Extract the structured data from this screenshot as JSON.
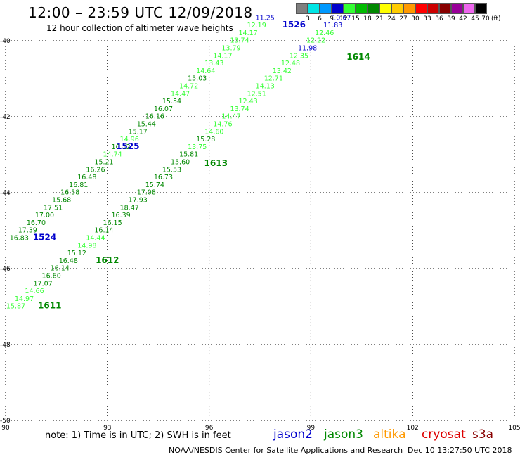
{
  "header": {
    "title": "12:00 – 23:59 UTC 12/09/2018",
    "subtitle": "12 hour collection of altimeter wave heights"
  },
  "color_scale": {
    "labels": [
      "3",
      "6",
      "9",
      "12",
      "15",
      "18",
      "21",
      "24",
      "27",
      "30",
      "33",
      "36",
      "39",
      "42",
      "45",
      "70"
    ],
    "colors": [
      "#7f7f7f",
      "#00e5e5",
      "#0099ff",
      "#0000cc",
      "#33ff33",
      "#00bb00",
      "#008800",
      "#ffff00",
      "#ffcc00",
      "#ff9900",
      "#ff0000",
      "#cc0000",
      "#880000",
      "#990099",
      "#ee66ee",
      "#000000"
    ],
    "unit": "(ft)"
  },
  "axes": {
    "x_ticks": [
      "90",
      "93",
      "96",
      "99",
      "102",
      "105"
    ],
    "y_ticks": [
      "-40",
      "-42",
      "-44",
      "-46",
      "-48",
      "-50"
    ],
    "x_range": [
      90,
      105
    ],
    "y_range": [
      -50,
      -40
    ]
  },
  "passes": [
    {
      "id": "1611",
      "label_lon": 91.3,
      "label_lat": -47.05,
      "color": "#008800",
      "points": [
        {
          "lon": 90.3,
          "lat": -47.05,
          "v": "15.87",
          "c": "#33ff33"
        },
        {
          "lon": 90.55,
          "lat": -46.85,
          "v": "14.97",
          "c": "#33ff33"
        },
        {
          "lon": 90.85,
          "lat": -46.65,
          "v": "14.66",
          "c": "#33ff33"
        },
        {
          "lon": 91.1,
          "lat": -46.45,
          "v": "17.07",
          "c": "#008800"
        },
        {
          "lon": 91.35,
          "lat": -46.25,
          "v": "16.60",
          "c": "#008800"
        },
        {
          "lon": 91.6,
          "lat": -46.05,
          "v": "16.14",
          "c": "#008800"
        },
        {
          "lon": 91.85,
          "lat": -45.85,
          "v": "16.48",
          "c": "#008800"
        },
        {
          "lon": 92.1,
          "lat": -45.65,
          "v": "15.12",
          "c": "#008800"
        }
      ]
    },
    {
      "id": "1612",
      "label_lon": 93.0,
      "label_lat": -45.85,
      "color": "#008800",
      "points": [
        {
          "lon": 92.4,
          "lat": -45.45,
          "v": "14.98",
          "c": "#33ff33"
        },
        {
          "lon": 92.65,
          "lat": -45.25,
          "v": "14.44",
          "c": "#33ff33"
        },
        {
          "lon": 92.9,
          "lat": -45.05,
          "v": "16.14",
          "c": "#008800"
        },
        {
          "lon": 93.15,
          "lat": -44.85,
          "v": "16.15",
          "c": "#008800"
        },
        {
          "lon": 93.4,
          "lat": -44.65,
          "v": "16.39",
          "c": "#008800"
        },
        {
          "lon": 93.65,
          "lat": -44.45,
          "v": "18.47",
          "c": "#008800"
        },
        {
          "lon": 93.9,
          "lat": -44.25,
          "v": "17.93",
          "c": "#008800"
        },
        {
          "lon": 94.15,
          "lat": -44.05,
          "v": "17.08",
          "c": "#008800"
        }
      ]
    },
    {
      "id": "1613",
      "label_lon": 96.2,
      "label_lat": -43.3,
      "color": "#008800",
      "points": [
        {
          "lon": 94.4,
          "lat": -43.85,
          "v": "15.74",
          "c": "#008800"
        },
        {
          "lon": 94.65,
          "lat": -43.65,
          "v": "16.73",
          "c": "#008800"
        },
        {
          "lon": 94.9,
          "lat": -43.45,
          "v": "15.53",
          "c": "#008800"
        },
        {
          "lon": 95.15,
          "lat": -43.25,
          "v": "15.60",
          "c": "#008800"
        },
        {
          "lon": 95.4,
          "lat": -43.05,
          "v": "15.81",
          "c": "#008800"
        },
        {
          "lon": 95.65,
          "lat": -42.85,
          "v": "13.75",
          "c": "#33ff33"
        },
        {
          "lon": 95.9,
          "lat": -42.65,
          "v": "15.28",
          "c": "#008800"
        },
        {
          "lon": 96.15,
          "lat": -42.45,
          "v": "14.60",
          "c": "#33ff33"
        },
        {
          "lon": 96.4,
          "lat": -42.25,
          "v": "14.76",
          "c": "#33ff33"
        },
        {
          "lon": 96.65,
          "lat": -42.05,
          "v": "14.47",
          "c": "#33ff33"
        },
        {
          "lon": 96.9,
          "lat": -41.85,
          "v": "13.74",
          "c": "#33ff33"
        },
        {
          "lon": 97.15,
          "lat": -41.65,
          "v": "12.43",
          "c": "#33ff33"
        },
        {
          "lon": 97.4,
          "lat": -41.45,
          "v": "12.51",
          "c": "#33ff33"
        },
        {
          "lon": 97.65,
          "lat": -41.25,
          "v": "14.13",
          "c": "#33ff33"
        },
        {
          "lon": 97.9,
          "lat": -41.05,
          "v": "12.71",
          "c": "#33ff33"
        },
        {
          "lon": 98.15,
          "lat": -40.85,
          "v": "13.42",
          "c": "#33ff33"
        },
        {
          "lon": 98.4,
          "lat": -40.65,
          "v": "12.48",
          "c": "#33ff33"
        },
        {
          "lon": 98.65,
          "lat": -40.45,
          "v": "12.35",
          "c": "#33ff33"
        }
      ]
    },
    {
      "id": "1614",
      "label_lon": 100.4,
      "label_lat": -40.5,
      "color": "#008800",
      "points": [
        {
          "lon": 98.9,
          "lat": -40.25,
          "v": "11.98",
          "c": "#0000cc"
        },
        {
          "lon": 99.15,
          "lat": -40.05,
          "v": "12.22",
          "c": "#33ff33"
        },
        {
          "lon": 99.4,
          "lat": -39.85,
          "v": "12.46",
          "c": "#33ff33"
        },
        {
          "lon": 99.65,
          "lat": -39.65,
          "v": "11.83",
          "c": "#0000cc"
        },
        {
          "lon": 99.9,
          "lat": -39.45,
          "v": "10.67",
          "c": "#0000cc"
        }
      ]
    },
    {
      "id": "1524",
      "label_lon": 91.15,
      "label_lat": -45.25,
      "color": "#0000cc",
      "points": [
        {
          "lon": 90.4,
          "lat": -45.25,
          "v": "16.83",
          "c": "#008800"
        },
        {
          "lon": 90.65,
          "lat": -45.05,
          "v": "17.39",
          "c": "#008800"
        },
        {
          "lon": 90.9,
          "lat": -44.85,
          "v": "16.70",
          "c": "#008800"
        },
        {
          "lon": 91.15,
          "lat": -44.65,
          "v": "17.00",
          "c": "#008800"
        },
        {
          "lon": 91.4,
          "lat": -44.45,
          "v": "17.51",
          "c": "#008800"
        },
        {
          "lon": 91.65,
          "lat": -44.25,
          "v": "15.68",
          "c": "#008800"
        },
        {
          "lon": 91.9,
          "lat": -44.05,
          "v": "16.58",
          "c": "#008800"
        },
        {
          "lon": 92.15,
          "lat": -43.85,
          "v": "16.81",
          "c": "#008800"
        },
        {
          "lon": 92.4,
          "lat": -43.65,
          "v": "16.48",
          "c": "#008800"
        },
        {
          "lon": 92.65,
          "lat": -43.45,
          "v": "16.26",
          "c": "#008800"
        },
        {
          "lon": 92.9,
          "lat": -43.25,
          "v": "15.21",
          "c": "#008800"
        },
        {
          "lon": 93.15,
          "lat": -43.05,
          "v": "14.74",
          "c": "#33ff33"
        },
        {
          "lon": 93.4,
          "lat": -42.85,
          "v": "16.12",
          "c": "#008800"
        }
      ]
    },
    {
      "id": "1525",
      "label_lon": 93.6,
      "label_lat": -42.85,
      "color": "#0000cc",
      "points": [
        {
          "lon": 93.65,
          "lat": -42.65,
          "v": "14.96",
          "c": "#33ff33"
        },
        {
          "lon": 93.9,
          "lat": -42.45,
          "v": "15.17",
          "c": "#008800"
        },
        {
          "lon": 94.15,
          "lat": -42.25,
          "v": "15.44",
          "c": "#008800"
        },
        {
          "lon": 94.4,
          "lat": -42.05,
          "v": "16.16",
          "c": "#008800"
        },
        {
          "lon": 94.65,
          "lat": -41.85,
          "v": "16.07",
          "c": "#008800"
        },
        {
          "lon": 94.9,
          "lat": -41.65,
          "v": "15.54",
          "c": "#008800"
        },
        {
          "lon": 95.15,
          "lat": -41.45,
          "v": "14.47",
          "c": "#33ff33"
        },
        {
          "lon": 95.4,
          "lat": -41.25,
          "v": "14.72",
          "c": "#33ff33"
        },
        {
          "lon": 95.65,
          "lat": -41.05,
          "v": "15.03",
          "c": "#008800"
        },
        {
          "lon": 95.9,
          "lat": -40.85,
          "v": "14.64",
          "c": "#33ff33"
        },
        {
          "lon": 96.15,
          "lat": -40.65,
          "v": "13.43",
          "c": "#33ff33"
        },
        {
          "lon": 96.4,
          "lat": -40.45,
          "v": "14.17",
          "c": "#33ff33"
        },
        {
          "lon": 96.65,
          "lat": -40.25,
          "v": "13.79",
          "c": "#33ff33"
        },
        {
          "lon": 96.9,
          "lat": -40.05,
          "v": "13.74",
          "c": "#33ff33"
        },
        {
          "lon": 97.15,
          "lat": -39.85,
          "v": "14.17",
          "c": "#33ff33"
        },
        {
          "lon": 97.4,
          "lat": -39.65,
          "v": "12.19",
          "c": "#33ff33"
        },
        {
          "lon": 97.65,
          "lat": -39.45,
          "v": "11.25",
          "c": "#0000cc"
        }
      ]
    },
    {
      "id": "1526",
      "label_lon": 98.5,
      "label_lat": -39.65,
      "color": "#0000cc",
      "points": []
    }
  ],
  "footer": {
    "note": "note:  1) Time is in UTC;  2) SWH is in feet",
    "satellites": [
      {
        "name": "jason2",
        "color": "#0000cc"
      },
      {
        "name": "jason3",
        "color": "#008800"
      },
      {
        "name": "altika",
        "color": "#ff9900"
      },
      {
        "name": "cryosat",
        "color": "#dd0000"
      },
      {
        "name": "s3a",
        "color": "#880000"
      }
    ],
    "credit": "NOAA/NESDIS Center for Satellite Applications and Research",
    "timestamp": "Dec 10 13:27:50 UTC 2018"
  }
}
